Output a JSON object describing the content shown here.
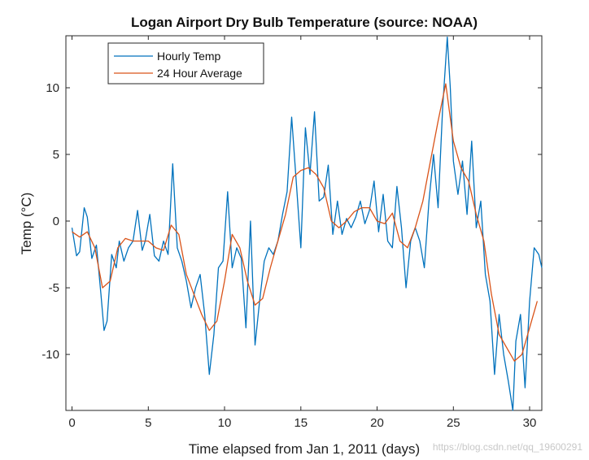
{
  "colors": {
    "hourly": "#0072BD",
    "average": "#D95319",
    "axis": "#262626"
  },
  "watermark": "https://blog.csdn.net/qq_19600291",
  "chart_data": {
    "type": "line",
    "title": "Logan Airport Dry Bulb Temperature (source: NOAA)",
    "xlabel": "Time elapsed from Jan 1, 2011 (days)",
    "ylabel": "Temp (°C)",
    "xlim": [
      -0.4,
      30.8
    ],
    "ylim": [
      -14.2,
      13.9
    ],
    "xticks": [
      0,
      5,
      10,
      15,
      20,
      25,
      30
    ],
    "yticks": [
      -10,
      -5,
      0,
      5,
      10
    ],
    "grid": false,
    "legend_position": "top-left",
    "series": [
      {
        "name": "Hourly Temp",
        "x": [
          0,
          0.3,
          0.5,
          0.8,
          1.0,
          1.3,
          1.6,
          1.9,
          2.1,
          2.3,
          2.6,
          2.9,
          3.1,
          3.4,
          3.7,
          4.0,
          4.3,
          4.6,
          4.8,
          5.1,
          5.4,
          5.7,
          6.0,
          6.3,
          6.6,
          6.9,
          7.2,
          7.5,
          7.8,
          8.1,
          8.4,
          8.7,
          9.0,
          9.3,
          9.6,
          9.9,
          10.2,
          10.5,
          10.8,
          11.1,
          11.4,
          11.7,
          12.0,
          12.3,
          12.6,
          12.9,
          13.2,
          13.5,
          13.8,
          14.1,
          14.4,
          14.7,
          15.0,
          15.3,
          15.6,
          15.9,
          16.2,
          16.5,
          16.8,
          17.1,
          17.4,
          17.7,
          18.0,
          18.3,
          18.6,
          18.9,
          19.2,
          19.5,
          19.8,
          20.1,
          20.4,
          20.7,
          21.0,
          21.3,
          21.6,
          21.9,
          22.2,
          22.5,
          22.8,
          23.1,
          23.4,
          23.7,
          24.0,
          24.3,
          24.6,
          24.8,
          25.0,
          25.3,
          25.6,
          25.9,
          26.2,
          26.5,
          26.8,
          27.1,
          27.4,
          27.7,
          28.0,
          28.3,
          28.6,
          28.9,
          29.1,
          29.4,
          29.7,
          30.0,
          30.3,
          30.6,
          30.8
        ],
        "values": [
          -0.5,
          -2.6,
          -2.3,
          1.0,
          0.3,
          -2.8,
          -1.8,
          -5.5,
          -8.2,
          -7.5,
          -2.5,
          -3.5,
          -1.5,
          -3.0,
          -2.0,
          -1.5,
          0.8,
          -2.2,
          -1.5,
          0.5,
          -2.6,
          -3.0,
          -1.5,
          -2.5,
          4.3,
          -2.0,
          -3.0,
          -4.5,
          -6.5,
          -5.0,
          -4.0,
          -7.0,
          -11.5,
          -8.5,
          -3.5,
          -3.0,
          2.2,
          -3.5,
          -2.0,
          -2.8,
          -8.0,
          0.0,
          -9.3,
          -6.0,
          -3.0,
          -2.0,
          -2.5,
          -1.5,
          0.5,
          2.2,
          7.8,
          3.0,
          -2.0,
          7.0,
          3.5,
          8.2,
          1.5,
          1.8,
          4.2,
          -1.0,
          1.5,
          -1.0,
          0.2,
          -0.5,
          0.3,
          1.5,
          -0.2,
          0.8,
          3.0,
          -0.8,
          2.0,
          -1.5,
          -2.0,
          2.6,
          -0.5,
          -5.0,
          -1.5,
          -0.5,
          -1.5,
          -3.5,
          1.5,
          5.0,
          1.0,
          8.5,
          13.8,
          10.0,
          4.5,
          2.0,
          4.5,
          0.5,
          6.0,
          -0.5,
          1.5,
          -4.0,
          -6.0,
          -11.5,
          -7.0,
          -10.0,
          -12.0,
          -14.2,
          -9.0,
          -7.0,
          -12.5,
          -6.0,
          -2.0,
          -2.5,
          -3.5
        ]
      },
      {
        "name": "24 Hour Average",
        "x": [
          0,
          0.5,
          1.0,
          1.5,
          2.0,
          2.5,
          3.0,
          3.5,
          4.0,
          4.5,
          5.0,
          5.5,
          6.0,
          6.5,
          7.0,
          7.5,
          8.0,
          8.5,
          9.0,
          9.5,
          10.0,
          10.5,
          11.0,
          11.5,
          12.0,
          12.5,
          13.0,
          13.5,
          14.0,
          14.5,
          15.0,
          15.5,
          16.0,
          16.5,
          17.0,
          17.5,
          18.0,
          18.5,
          19.0,
          19.5,
          20.0,
          20.5,
          21.0,
          21.5,
          22.0,
          22.5,
          23.0,
          23.5,
          24.0,
          24.5,
          25.0,
          25.5,
          26.0,
          26.5,
          27.0,
          27.5,
          28.0,
          28.5,
          29.0,
          29.5,
          30.0,
          30.5
        ],
        "values": [
          -0.8,
          -1.2,
          -0.8,
          -2.0,
          -5.0,
          -4.5,
          -2.0,
          -1.3,
          -1.5,
          -1.5,
          -1.5,
          -2.0,
          -2.2,
          -0.3,
          -1.0,
          -4.0,
          -5.5,
          -7.0,
          -8.2,
          -7.5,
          -4.5,
          -1.0,
          -2.0,
          -4.5,
          -6.3,
          -5.8,
          -3.5,
          -1.5,
          0.5,
          3.3,
          3.8,
          4.0,
          3.5,
          2.5,
          0.0,
          -0.5,
          0.0,
          0.7,
          1.0,
          1.0,
          0.0,
          -0.2,
          0.6,
          -1.5,
          -2.0,
          -0.5,
          1.5,
          4.5,
          7.5,
          10.3,
          6.0,
          4.0,
          3.0,
          0.5,
          -1.5,
          -5.5,
          -8.5,
          -9.5,
          -10.5,
          -10.0,
          -8.0,
          -6.0
        ]
      }
    ]
  }
}
